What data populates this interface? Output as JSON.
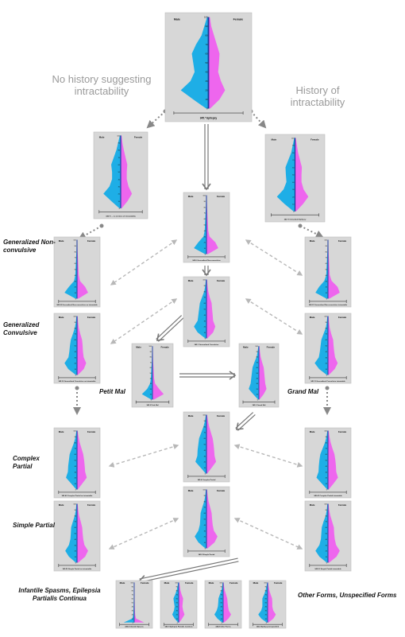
{
  "common": {
    "male_label": "Male",
    "female_label": "Female"
  },
  "colors": {
    "male": "#1eaee6",
    "female": "#ee66ee",
    "axis": "#1a3a99",
    "panel_bg": "#d7d7d7",
    "arrow_solid": "#777777",
    "arrow_dashed": "#b8b8b8",
    "dotted": "#888888",
    "heading": "#9a9a9a"
  },
  "headings": {
    "no_history": "No history suggesting intractability",
    "history": "History of intractability"
  },
  "labels": {
    "generalized_nonconvulsive": "Generalized Non-convulsive",
    "generalized_convulsive": "Generalized Convulsive",
    "petit_mal": "Petit Mal",
    "grand_mal": "Grand Mal",
    "complex_partial": "Complex Partial",
    "simple_partial": "Simple Partial",
    "infantile": "Infantile Spasms, Epilepsia Partialis Continua",
    "other_forms": "Other Forms, Unspecified Forms"
  },
  "panels": [
    {
      "id": "epilepsy",
      "caption": "345.* Epilepsy",
      "ticks": [
        "100",
        "90",
        "80",
        "70",
        "60",
        "50",
        "40",
        "30",
        "20",
        "10",
        "0"
      ],
      "male": [
        0.05,
        0.15,
        0.25,
        0.45,
        0.6,
        0.55,
        0.5,
        0.65,
        1.0,
        0.55,
        0.08
      ],
      "female": [
        0.05,
        0.1,
        0.2,
        0.3,
        0.4,
        0.38,
        0.35,
        0.45,
        0.6,
        0.4,
        0.06
      ]
    },
    {
      "id": "no_intract",
      "caption": "345.*0 ... no mention of intractability",
      "ticks": [
        "100",
        "90",
        "80",
        "70",
        "60",
        "50",
        "40",
        "30",
        "20",
        "10",
        "0"
      ],
      "male": [
        0.05,
        0.15,
        0.25,
        0.4,
        0.55,
        0.5,
        0.5,
        0.65,
        1.0,
        0.55,
        0.08
      ],
      "female": [
        0.05,
        0.1,
        0.18,
        0.28,
        0.38,
        0.35,
        0.35,
        0.45,
        0.65,
        0.4,
        0.06
      ]
    },
    {
      "id": "intract",
      "caption": "345.*1 Intractable Epilepsy",
      "ticks": [
        "100",
        "90",
        "80",
        "70",
        "60",
        "50",
        "40",
        "30",
        "20",
        "10",
        "0"
      ],
      "male": [
        0.04,
        0.12,
        0.2,
        0.35,
        0.5,
        0.48,
        0.45,
        0.6,
        0.95,
        0.55,
        0.08
      ],
      "female": [
        0.04,
        0.1,
        0.16,
        0.26,
        0.36,
        0.34,
        0.34,
        0.45,
        0.7,
        0.42,
        0.06
      ]
    },
    {
      "id": "gen_nonconv",
      "caption": "345.0 Generalized Non-convulsive",
      "ticks": [
        "100",
        "90",
        "80",
        "70",
        "60",
        "50",
        "40",
        "30",
        "20",
        "10",
        "0"
      ],
      "male": [
        0.02,
        0.03,
        0.04,
        0.06,
        0.08,
        0.1,
        0.12,
        0.2,
        0.55,
        0.85,
        0.1
      ],
      "female": [
        0.02,
        0.03,
        0.04,
        0.06,
        0.08,
        0.1,
        0.12,
        0.2,
        0.6,
        0.8,
        0.1
      ]
    },
    {
      "id": "gen_nonconv_no",
      "caption": "345.00 Generalized Non-convulsive no intractable",
      "ticks": [
        "100",
        "90",
        "80",
        "70",
        "60",
        "50",
        "40",
        "30",
        "20",
        "10",
        "0"
      ],
      "male": [
        0.02,
        0.03,
        0.04,
        0.06,
        0.08,
        0.1,
        0.12,
        0.2,
        0.55,
        0.85,
        0.1
      ],
      "female": [
        0.02,
        0.03,
        0.04,
        0.06,
        0.08,
        0.1,
        0.12,
        0.2,
        0.55,
        0.75,
        0.1
      ]
    },
    {
      "id": "gen_nonconv_int",
      "caption": "345.01 Generalized Non-convulsive intractable",
      "ticks": [
        "100",
        "90",
        "80",
        "70",
        "60",
        "50",
        "40",
        "30",
        "20",
        "10",
        "0"
      ],
      "male": [
        0.02,
        0.03,
        0.04,
        0.06,
        0.08,
        0.1,
        0.12,
        0.25,
        0.6,
        0.85,
        0.1
      ],
      "female": [
        0.02,
        0.03,
        0.04,
        0.06,
        0.08,
        0.1,
        0.12,
        0.25,
        0.65,
        0.8,
        0.1
      ]
    },
    {
      "id": "gen_conv",
      "caption": "345.1 Generalized Convulsive",
      "ticks": [
        "100",
        "90",
        "80",
        "70",
        "60",
        "50",
        "40",
        "30",
        "20",
        "10",
        "0"
      ],
      "male": [
        0.04,
        0.08,
        0.15,
        0.3,
        0.45,
        0.5,
        0.55,
        0.6,
        0.85,
        0.6,
        0.08
      ],
      "female": [
        0.04,
        0.07,
        0.12,
        0.22,
        0.35,
        0.38,
        0.42,
        0.45,
        0.6,
        0.45,
        0.06
      ]
    },
    {
      "id": "gen_conv_no",
      "caption": "345.10 Generalized Convulsive no intractable",
      "ticks": [
        "100",
        "90",
        "80",
        "70",
        "60",
        "50",
        "40",
        "30",
        "20",
        "10",
        "0"
      ],
      "male": [
        0.04,
        0.08,
        0.15,
        0.28,
        0.42,
        0.48,
        0.52,
        0.58,
        0.85,
        0.6,
        0.08
      ],
      "female": [
        0.04,
        0.07,
        0.12,
        0.22,
        0.34,
        0.38,
        0.4,
        0.45,
        0.62,
        0.46,
        0.06
      ]
    },
    {
      "id": "gen_conv_int",
      "caption": "345.11 Generalized Convulsive intractable",
      "ticks": [
        "100",
        "90",
        "80",
        "70",
        "60",
        "50",
        "40",
        "30",
        "20",
        "10",
        "0"
      ],
      "male": [
        0.04,
        0.08,
        0.15,
        0.3,
        0.45,
        0.5,
        0.55,
        0.62,
        0.9,
        0.6,
        0.08
      ],
      "female": [
        0.04,
        0.07,
        0.12,
        0.22,
        0.35,
        0.38,
        0.42,
        0.48,
        0.66,
        0.46,
        0.06
      ]
    },
    {
      "id": "petit",
      "caption": "345.2 Petit Mal",
      "ticks": [
        "100",
        "90",
        "80",
        "70",
        "60",
        "50",
        "40",
        "30",
        "20",
        "10",
        "0"
      ],
      "male": [
        0.02,
        0.03,
        0.04,
        0.05,
        0.08,
        0.1,
        0.12,
        0.18,
        0.4,
        0.8,
        0.1
      ],
      "female": [
        0.02,
        0.03,
        0.04,
        0.05,
        0.08,
        0.1,
        0.12,
        0.2,
        0.5,
        0.85,
        0.12
      ]
    },
    {
      "id": "grand",
      "caption": "345.3 Grand Mal",
      "ticks": [
        "100",
        "90",
        "80",
        "70",
        "60",
        "50",
        "40",
        "30",
        "20",
        "10",
        "0"
      ],
      "male": [
        0.04,
        0.1,
        0.18,
        0.35,
        0.5,
        0.55,
        0.6,
        0.65,
        0.8,
        0.45,
        0.06
      ],
      "female": [
        0.04,
        0.08,
        0.14,
        0.25,
        0.38,
        0.42,
        0.46,
        0.5,
        0.6,
        0.38,
        0.05
      ]
    },
    {
      "id": "complex",
      "caption": "345.4 Complex Partial",
      "ticks": [
        "100",
        "90",
        "80",
        "70",
        "60",
        "50",
        "40",
        "30",
        "20",
        "10",
        "0"
      ],
      "male": [
        0.04,
        0.1,
        0.2,
        0.35,
        0.5,
        0.55,
        0.6,
        0.62,
        0.75,
        0.4,
        0.05
      ],
      "female": [
        0.04,
        0.1,
        0.18,
        0.3,
        0.42,
        0.48,
        0.52,
        0.55,
        0.65,
        0.36,
        0.05
      ]
    },
    {
      "id": "complex_no",
      "caption": "345.40 Complex Partial no intractable",
      "ticks": [
        "100",
        "90",
        "80",
        "70",
        "60",
        "50",
        "40",
        "30",
        "20",
        "10",
        "0"
      ],
      "male": [
        0.04,
        0.1,
        0.2,
        0.35,
        0.5,
        0.55,
        0.6,
        0.62,
        0.75,
        0.4,
        0.05
      ],
      "female": [
        0.04,
        0.1,
        0.18,
        0.3,
        0.42,
        0.48,
        0.52,
        0.55,
        0.66,
        0.36,
        0.05
      ]
    },
    {
      "id": "complex_int",
      "caption": "345.41 Complex Partial intractable",
      "ticks": [
        "100",
        "90",
        "80",
        "70",
        "60",
        "50",
        "40",
        "30",
        "20",
        "10",
        "0"
      ],
      "male": [
        0.04,
        0.1,
        0.2,
        0.36,
        0.52,
        0.58,
        0.62,
        0.64,
        0.78,
        0.42,
        0.05
      ],
      "female": [
        0.04,
        0.1,
        0.18,
        0.3,
        0.44,
        0.5,
        0.54,
        0.56,
        0.68,
        0.38,
        0.05
      ]
    },
    {
      "id": "simple",
      "caption": "345.5 Simple Partial",
      "ticks": [
        "100",
        "90",
        "80",
        "70",
        "60",
        "50",
        "40",
        "30",
        "20",
        "10",
        "0"
      ],
      "male": [
        0.04,
        0.08,
        0.15,
        0.28,
        0.4,
        0.42,
        0.45,
        0.55,
        0.8,
        0.55,
        0.08
      ],
      "female": [
        0.04,
        0.08,
        0.14,
        0.25,
        0.35,
        0.38,
        0.42,
        0.5,
        0.75,
        0.55,
        0.08
      ]
    },
    {
      "id": "simple_no",
      "caption": "345.50 Simple Partial no intractable",
      "ticks": [
        "100",
        "90",
        "80",
        "70",
        "60",
        "50",
        "40",
        "30",
        "20",
        "10",
        "0"
      ],
      "male": [
        0.04,
        0.08,
        0.15,
        0.28,
        0.4,
        0.42,
        0.45,
        0.55,
        0.8,
        0.55,
        0.08
      ],
      "female": [
        0.04,
        0.08,
        0.14,
        0.25,
        0.35,
        0.38,
        0.42,
        0.5,
        0.75,
        0.55,
        0.08
      ]
    },
    {
      "id": "simple_int",
      "caption": "345.51 Simple Partial intractable",
      "ticks": [
        "100",
        "90",
        "80",
        "70",
        "60",
        "50",
        "40",
        "30",
        "20",
        "10",
        "0"
      ],
      "male": [
        0.04,
        0.08,
        0.15,
        0.3,
        0.42,
        0.45,
        0.48,
        0.58,
        0.85,
        0.58,
        0.08
      ],
      "female": [
        0.04,
        0.08,
        0.16,
        0.28,
        0.4,
        0.42,
        0.46,
        0.55,
        0.8,
        0.58,
        0.08
      ]
    },
    {
      "id": "infantile",
      "caption": "345.6 Infantile Spasms",
      "ticks": [
        "100",
        "90",
        "80",
        "70",
        "60",
        "50",
        "40",
        "30",
        "20",
        "10",
        "0"
      ],
      "male": [
        0.02,
        0.02,
        0.02,
        0.03,
        0.03,
        0.04,
        0.05,
        0.06,
        0.08,
        0.15,
        0.9
      ],
      "female": [
        0.02,
        0.02,
        0.02,
        0.03,
        0.03,
        0.04,
        0.05,
        0.06,
        0.08,
        0.15,
        0.85
      ]
    },
    {
      "id": "epc",
      "caption": "345.7 Epilepsia Partialis Continua",
      "ticks": [
        "100",
        "90",
        "80",
        "70",
        "60",
        "50",
        "40",
        "30",
        "20",
        "10",
        "0"
      ],
      "male": [
        0.05,
        0.1,
        0.18,
        0.3,
        0.45,
        0.4,
        0.35,
        0.4,
        0.55,
        0.35,
        0.05
      ],
      "female": [
        0.05,
        0.1,
        0.15,
        0.25,
        0.38,
        0.35,
        0.32,
        0.38,
        0.5,
        0.3,
        0.05
      ]
    },
    {
      "id": "other",
      "caption": "345.8 Other Forms",
      "ticks": [
        "100",
        "90",
        "80",
        "70",
        "60",
        "50",
        "40",
        "30",
        "20",
        "10",
        "0"
      ],
      "male": [
        0.04,
        0.08,
        0.15,
        0.28,
        0.4,
        0.42,
        0.45,
        0.55,
        0.75,
        0.5,
        0.08
      ],
      "female": [
        0.04,
        0.08,
        0.14,
        0.25,
        0.35,
        0.38,
        0.42,
        0.48,
        0.68,
        0.46,
        0.08
      ]
    },
    {
      "id": "unspec",
      "caption": "345.9 Epilepsy Unspecified",
      "ticks": [
        "100",
        "90",
        "80",
        "70",
        "60",
        "50",
        "40",
        "30",
        "20",
        "10",
        "0"
      ],
      "male": [
        0.04,
        0.1,
        0.18,
        0.3,
        0.45,
        0.45,
        0.45,
        0.55,
        0.8,
        0.55,
        0.08
      ],
      "female": [
        0.04,
        0.08,
        0.15,
        0.26,
        0.38,
        0.4,
        0.4,
        0.48,
        0.7,
        0.5,
        0.08
      ]
    }
  ]
}
